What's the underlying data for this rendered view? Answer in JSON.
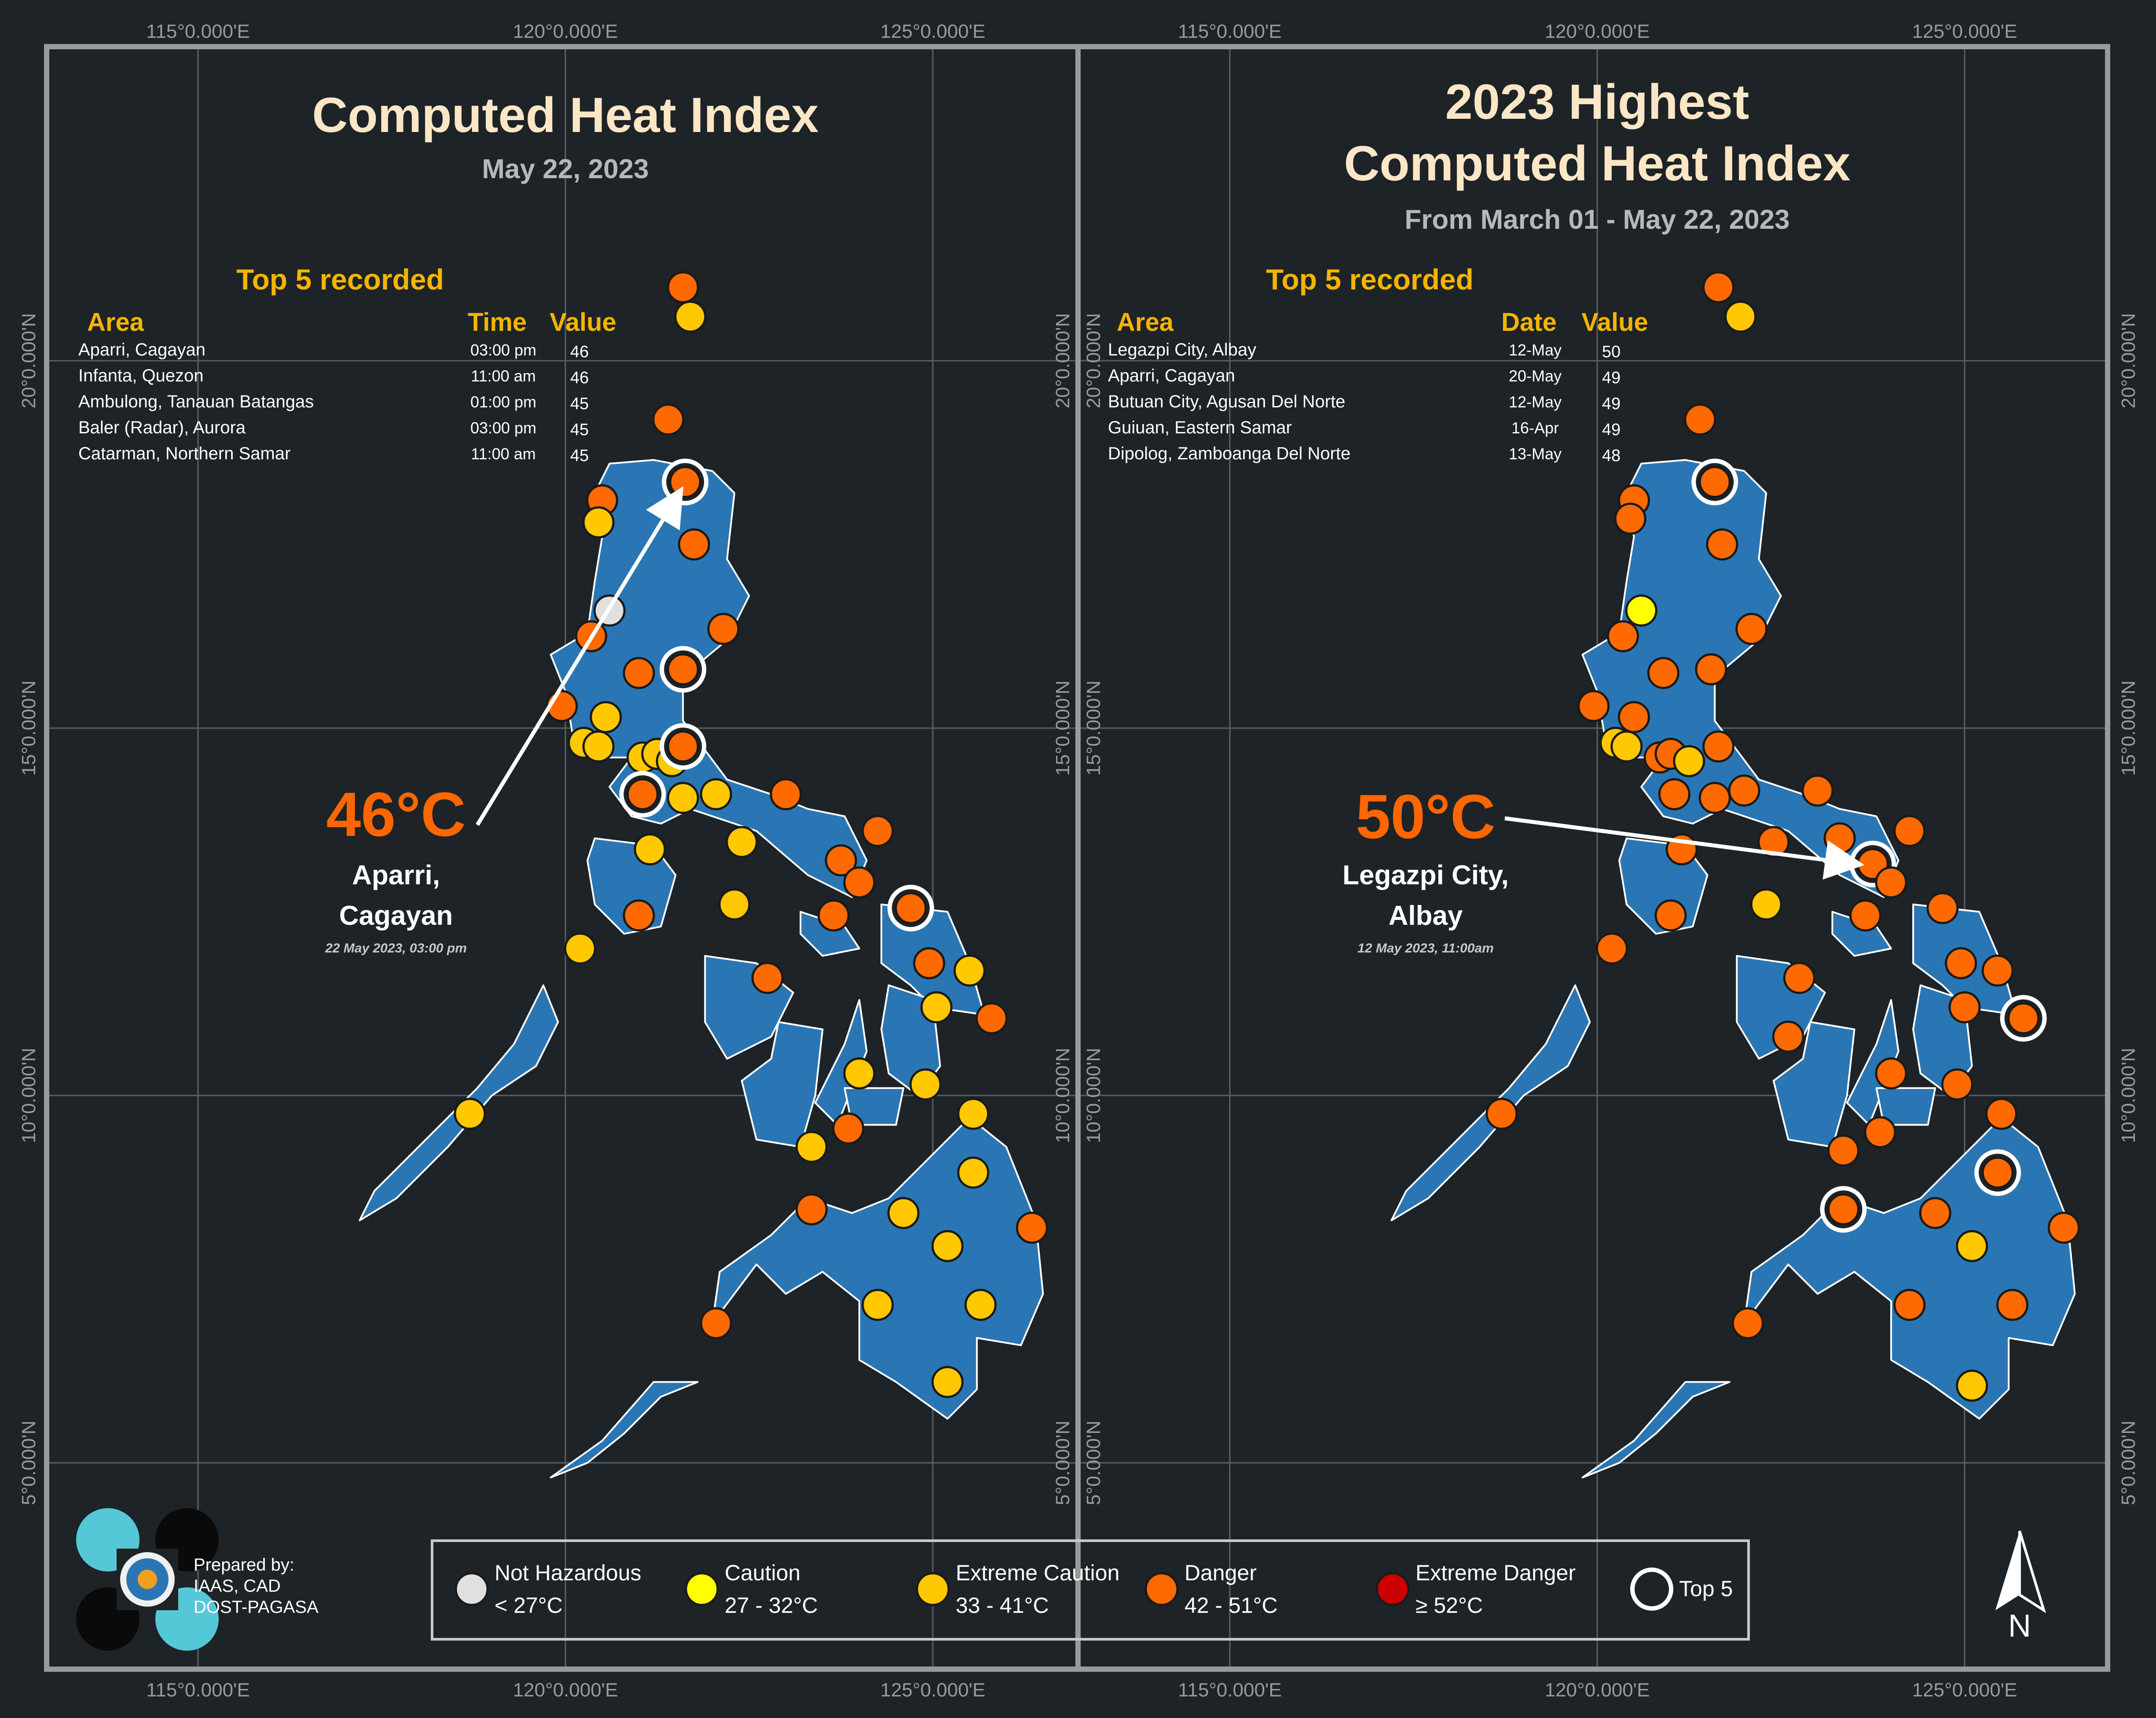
{
  "colors": {
    "background": "#1d2327",
    "frame": "#9a9a9a",
    "grid": "#5a6064",
    "land": "#2a76b4",
    "title": "#fbe6c6",
    "subtitle": "#b8b8b8",
    "accent_yellow": "#f5b400",
    "hot_orange": "#ff6600",
    "not_hazardous": "#e0e0e0",
    "caution": "#ffff00",
    "extreme_caution": "#ffc800",
    "danger": "#ff6a00",
    "extreme_danger": "#cc0000"
  },
  "axes": {
    "longitude_labels": [
      "115°0.000'E",
      "120°0.000'E",
      "125°0.000'E"
    ],
    "latitude_labels": [
      "20°0.000'N",
      "15°0.000'N",
      "10°0.000'N",
      "5°0.000'N"
    ]
  },
  "panels": [
    {
      "title_lines": [
        "Computed Heat Index"
      ],
      "subtitle": "May 22, 2023",
      "table_title": "Top 5 recorded",
      "headers": {
        "area": "Area",
        "time": "Time",
        "value": "Value"
      },
      "rows": [
        {
          "area": "Aparri, Cagayan",
          "time": "03:00 pm",
          "value": "46"
        },
        {
          "area": "Infanta, Quezon",
          "time": "11:00 am",
          "value": "46"
        },
        {
          "area": "Ambulong, Tanauan Batangas",
          "time": "01:00 pm",
          "value": "45"
        },
        {
          "area": "Baler (Radar), Aurora",
          "time": "03:00 pm",
          "value": "45"
        },
        {
          "area": "Catarman, Northern Samar",
          "time": "11:00 am",
          "value": "45"
        }
      ],
      "callout": {
        "value": "46°C",
        "place_line1": "Aparri,",
        "place_line2": "Cagayan",
        "datetime": "22 May 2023, 03:00 pm"
      },
      "stations": [
        {
          "lon": 121.6,
          "lat": 21.0,
          "cat": "danger"
        },
        {
          "lon": 121.7,
          "lat": 20.6,
          "cat": "extreme_caution"
        },
        {
          "lon": 121.4,
          "lat": 19.2,
          "cat": "danger"
        },
        {
          "lon": 121.63,
          "lat": 18.35,
          "cat": "danger",
          "top5": true
        },
        {
          "lon": 120.5,
          "lat": 18.1,
          "cat": "danger"
        },
        {
          "lon": 120.45,
          "lat": 17.8,
          "cat": "extreme_caution"
        },
        {
          "lon": 121.75,
          "lat": 17.5,
          "cat": "danger"
        },
        {
          "lon": 120.6,
          "lat": 16.6,
          "cat": "not_hazardous"
        },
        {
          "lon": 120.35,
          "lat": 16.25,
          "cat": "danger"
        },
        {
          "lon": 122.15,
          "lat": 16.35,
          "cat": "danger"
        },
        {
          "lon": 121.0,
          "lat": 15.75,
          "cat": "danger"
        },
        {
          "lon": 121.6,
          "lat": 15.8,
          "cat": "danger",
          "top5": true
        },
        {
          "lon": 119.95,
          "lat": 15.3,
          "cat": "danger"
        },
        {
          "lon": 120.55,
          "lat": 15.15,
          "cat": "extreme_caution"
        },
        {
          "lon": 120.25,
          "lat": 14.8,
          "cat": "extreme_caution"
        },
        {
          "lon": 120.45,
          "lat": 14.75,
          "cat": "extreme_caution"
        },
        {
          "lon": 121.05,
          "lat": 14.6,
          "cat": "extreme_caution"
        },
        {
          "lon": 121.25,
          "lat": 14.65,
          "cat": "extreme_caution"
        },
        {
          "lon": 121.45,
          "lat": 14.55,
          "cat": "extreme_caution"
        },
        {
          "lon": 121.6,
          "lat": 14.75,
          "cat": "danger",
          "top5": true
        },
        {
          "lon": 121.05,
          "lat": 14.1,
          "cat": "danger",
          "top5": true
        },
        {
          "lon": 121.6,
          "lat": 14.05,
          "cat": "extreme_caution"
        },
        {
          "lon": 122.05,
          "lat": 14.1,
          "cat": "extreme_caution"
        },
        {
          "lon": 123.0,
          "lat": 14.1,
          "cat": "danger"
        },
        {
          "lon": 124.25,
          "lat": 13.6,
          "cat": "danger"
        },
        {
          "lon": 121.15,
          "lat": 13.35,
          "cat": "extreme_caution"
        },
        {
          "lon": 122.4,
          "lat": 13.45,
          "cat": "extreme_caution"
        },
        {
          "lon": 123.75,
          "lat": 13.2,
          "cat": "danger"
        },
        {
          "lon": 124.0,
          "lat": 12.9,
          "cat": "danger"
        },
        {
          "lon": 124.7,
          "lat": 12.55,
          "cat": "danger",
          "top5": true
        },
        {
          "lon": 122.3,
          "lat": 12.6,
          "cat": "extreme_caution"
        },
        {
          "lon": 123.65,
          "lat": 12.45,
          "cat": "danger"
        },
        {
          "lon": 121.0,
          "lat": 12.45,
          "cat": "danger"
        },
        {
          "lon": 120.2,
          "lat": 12.0,
          "cat": "extreme_caution"
        },
        {
          "lon": 124.95,
          "lat": 11.8,
          "cat": "danger"
        },
        {
          "lon": 125.5,
          "lat": 11.7,
          "cat": "extreme_caution"
        },
        {
          "lon": 122.75,
          "lat": 11.6,
          "cat": "danger"
        },
        {
          "lon": 125.05,
          "lat": 11.2,
          "cat": "extreme_caution"
        },
        {
          "lon": 125.8,
          "lat": 11.05,
          "cat": "danger"
        },
        {
          "lon": 124.0,
          "lat": 10.3,
          "cat": "extreme_caution"
        },
        {
          "lon": 124.9,
          "lat": 10.15,
          "cat": "extreme_caution"
        },
        {
          "lon": 118.7,
          "lat": 9.75,
          "cat": "extreme_caution"
        },
        {
          "lon": 125.55,
          "lat": 9.75,
          "cat": "extreme_caution"
        },
        {
          "lon": 123.85,
          "lat": 9.55,
          "cat": "danger"
        },
        {
          "lon": 123.35,
          "lat": 9.3,
          "cat": "extreme_caution"
        },
        {
          "lon": 125.55,
          "lat": 8.95,
          "cat": "extreme_caution"
        },
        {
          "lon": 123.35,
          "lat": 8.45,
          "cat": "danger"
        },
        {
          "lon": 124.6,
          "lat": 8.4,
          "cat": "extreme_caution"
        },
        {
          "lon": 126.35,
          "lat": 8.2,
          "cat": "danger"
        },
        {
          "lon": 125.2,
          "lat": 7.95,
          "cat": "extreme_caution"
        },
        {
          "lon": 124.25,
          "lat": 7.15,
          "cat": "extreme_caution"
        },
        {
          "lon": 125.65,
          "lat": 7.15,
          "cat": "extreme_caution"
        },
        {
          "lon": 122.05,
          "lat": 6.9,
          "cat": "danger"
        },
        {
          "lon": 125.2,
          "lat": 6.1,
          "cat": "extreme_caution"
        }
      ]
    },
    {
      "title_lines": [
        "2023 Highest",
        "Computed Heat Index"
      ],
      "subtitle": "From March 01 - May 22, 2023",
      "table_title": "Top 5 recorded",
      "headers": {
        "area": "Area",
        "time": "Date",
        "value": "Value"
      },
      "rows": [
        {
          "area": "Legazpi City, Albay",
          "time": "12-May",
          "value": "50"
        },
        {
          "area": "Aparri, Cagayan",
          "time": "20-May",
          "value": "49"
        },
        {
          "area": "Butuan City, Agusan Del Norte",
          "time": "12-May",
          "value": "49"
        },
        {
          "area": "Guiuan, Eastern Samar",
          "time": "16-Apr",
          "value": "49"
        },
        {
          "area": "Dipolog, Zamboanga Del Norte",
          "time": "13-May",
          "value": "48"
        }
      ],
      "callout": {
        "value": "50°C",
        "place_line1": "Legazpi City,",
        "place_line2": "Albay",
        "datetime": "12 May 2023, 11:00am"
      },
      "stations": [
        {
          "lon": 121.65,
          "lat": 21.0,
          "cat": "danger"
        },
        {
          "lon": 121.95,
          "lat": 20.6,
          "cat": "extreme_caution"
        },
        {
          "lon": 121.4,
          "lat": 19.2,
          "cat": "danger"
        },
        {
          "lon": 121.6,
          "lat": 18.35,
          "cat": "danger",
          "top5": true
        },
        {
          "lon": 120.5,
          "lat": 18.1,
          "cat": "danger"
        },
        {
          "lon": 120.45,
          "lat": 17.85,
          "cat": "danger"
        },
        {
          "lon": 121.7,
          "lat": 17.5,
          "cat": "danger"
        },
        {
          "lon": 120.6,
          "lat": 16.6,
          "cat": "caution"
        },
        {
          "lon": 120.35,
          "lat": 16.25,
          "cat": "danger"
        },
        {
          "lon": 122.1,
          "lat": 16.35,
          "cat": "danger"
        },
        {
          "lon": 120.9,
          "lat": 15.75,
          "cat": "danger"
        },
        {
          "lon": 121.55,
          "lat": 15.8,
          "cat": "danger"
        },
        {
          "lon": 119.95,
          "lat": 15.3,
          "cat": "danger"
        },
        {
          "lon": 120.5,
          "lat": 15.15,
          "cat": "danger"
        },
        {
          "lon": 120.25,
          "lat": 14.8,
          "cat": "extreme_caution"
        },
        {
          "lon": 120.4,
          "lat": 14.75,
          "cat": "extreme_caution"
        },
        {
          "lon": 120.85,
          "lat": 14.6,
          "cat": "danger"
        },
        {
          "lon": 121.0,
          "lat": 14.65,
          "cat": "danger"
        },
        {
          "lon": 121.25,
          "lat": 14.55,
          "cat": "extreme_caution"
        },
        {
          "lon": 121.65,
          "lat": 14.75,
          "cat": "danger"
        },
        {
          "lon": 121.05,
          "lat": 14.1,
          "cat": "danger"
        },
        {
          "lon": 121.6,
          "lat": 14.05,
          "cat": "danger"
        },
        {
          "lon": 122.0,
          "lat": 14.15,
          "cat": "danger"
        },
        {
          "lon": 123.0,
          "lat": 14.15,
          "cat": "danger"
        },
        {
          "lon": 124.25,
          "lat": 13.6,
          "cat": "danger"
        },
        {
          "lon": 121.15,
          "lat": 13.35,
          "cat": "danger"
        },
        {
          "lon": 122.4,
          "lat": 13.45,
          "cat": "danger"
        },
        {
          "lon": 123.3,
          "lat": 13.5,
          "cat": "danger"
        },
        {
          "lon": 123.75,
          "lat": 13.15,
          "cat": "danger",
          "top5": true
        },
        {
          "lon": 124.0,
          "lat": 12.9,
          "cat": "danger"
        },
        {
          "lon": 122.3,
          "lat": 12.6,
          "cat": "extreme_caution"
        },
        {
          "lon": 123.65,
          "lat": 12.45,
          "cat": "danger"
        },
        {
          "lon": 121.0,
          "lat": 12.45,
          "cat": "danger"
        },
        {
          "lon": 124.7,
          "lat": 12.55,
          "cat": "danger"
        },
        {
          "lon": 120.2,
          "lat": 12.0,
          "cat": "danger"
        },
        {
          "lon": 124.95,
          "lat": 11.8,
          "cat": "danger"
        },
        {
          "lon": 125.45,
          "lat": 11.7,
          "cat": "danger"
        },
        {
          "lon": 122.75,
          "lat": 11.6,
          "cat": "danger"
        },
        {
          "lon": 125.0,
          "lat": 11.2,
          "cat": "danger"
        },
        {
          "lon": 125.8,
          "lat": 11.05,
          "cat": "danger",
          "top5": true
        },
        {
          "lon": 122.6,
          "lat": 10.8,
          "cat": "danger"
        },
        {
          "lon": 124.0,
          "lat": 10.3,
          "cat": "danger"
        },
        {
          "lon": 124.9,
          "lat": 10.15,
          "cat": "danger"
        },
        {
          "lon": 118.7,
          "lat": 9.75,
          "cat": "danger"
        },
        {
          "lon": 125.5,
          "lat": 9.75,
          "cat": "danger"
        },
        {
          "lon": 123.85,
          "lat": 9.5,
          "cat": "danger"
        },
        {
          "lon": 123.35,
          "lat": 9.25,
          "cat": "danger"
        },
        {
          "lon": 125.45,
          "lat": 8.95,
          "cat": "danger",
          "top5": true
        },
        {
          "lon": 123.35,
          "lat": 8.45,
          "cat": "danger",
          "top5": true
        },
        {
          "lon": 124.6,
          "lat": 8.4,
          "cat": "danger"
        },
        {
          "lon": 126.35,
          "lat": 8.2,
          "cat": "danger"
        },
        {
          "lon": 125.1,
          "lat": 7.95,
          "cat": "extreme_caution"
        },
        {
          "lon": 124.25,
          "lat": 7.15,
          "cat": "danger"
        },
        {
          "lon": 125.65,
          "lat": 7.15,
          "cat": "danger"
        },
        {
          "lon": 122.05,
          "lat": 6.9,
          "cat": "danger"
        },
        {
          "lon": 125.1,
          "lat": 6.05,
          "cat": "extreme_caution"
        }
      ]
    }
  ],
  "legend": {
    "items": [
      {
        "label": "Not Hazardous",
        "range": "< 27°C",
        "cat": "not_hazardous"
      },
      {
        "label": "Caution",
        "range": "27 - 32°C",
        "cat": "caution"
      },
      {
        "label": "Extreme Caution",
        "range": "33 - 41°C",
        "cat": "extreme_caution"
      },
      {
        "label": "Danger",
        "range": "42 - 51°C",
        "cat": "danger"
      },
      {
        "label": "Extreme Danger",
        "range": "≥ 52°C",
        "cat": "extreme_danger"
      }
    ],
    "top5_label": "Top 5"
  },
  "credits": {
    "line1": "Prepared by:",
    "line2": "IAAS, CAD",
    "line3": "DOST-PAGASA"
  },
  "north_label": "N",
  "logo_name": "pagasa-logo"
}
